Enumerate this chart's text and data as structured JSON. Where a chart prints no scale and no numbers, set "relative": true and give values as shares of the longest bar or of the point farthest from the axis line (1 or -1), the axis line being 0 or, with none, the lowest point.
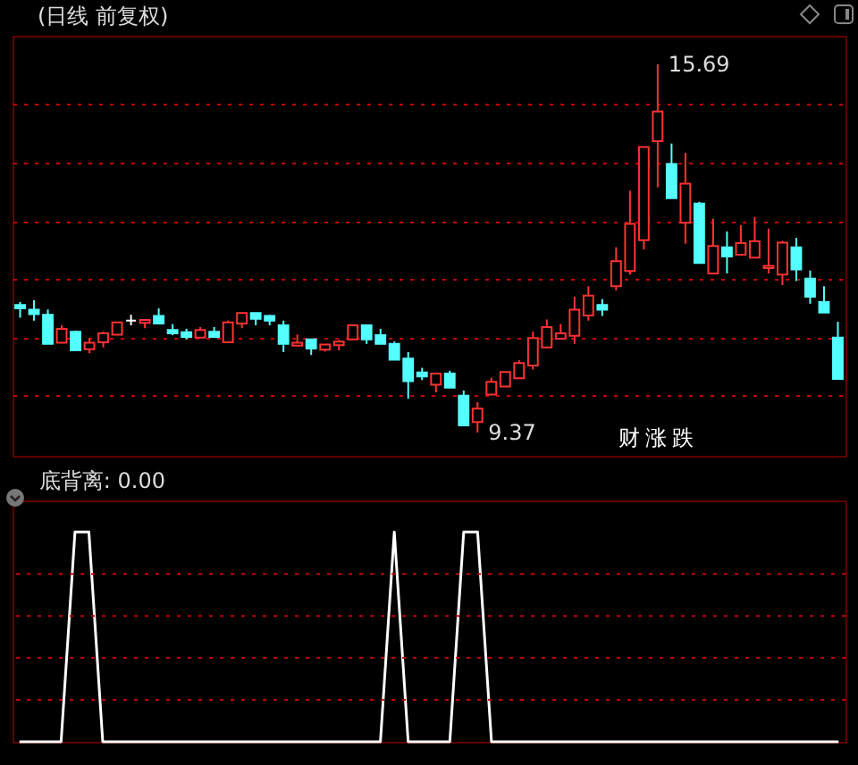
{
  "chart_data": [
    {
      "type": "candlestick",
      "title": "(日线 前复权)",
      "categories": [
        null,
        null,
        null,
        null,
        null,
        null,
        null,
        null,
        null,
        null,
        null,
        null,
        null,
        null,
        null,
        null,
        null,
        null,
        null,
        null,
        null,
        null,
        null,
        null,
        null,
        null,
        null,
        null,
        null,
        null,
        null,
        null,
        null,
        null,
        null,
        null,
        null,
        null,
        null,
        null,
        null,
        null,
        null,
        null,
        null,
        null,
        null,
        null,
        null,
        null,
        null,
        null,
        null,
        null,
        null,
        null,
        null,
        null,
        null,
        null
      ],
      "ohlc": [
        [
          11.56,
          11.61,
          11.34,
          11.5
        ],
        [
          11.48,
          11.64,
          11.29,
          11.4
        ],
        [
          11.39,
          11.48,
          10.89,
          10.89
        ],
        [
          10.91,
          11.21,
          10.91,
          11.15
        ],
        [
          11.1,
          11.12,
          10.78,
          10.78
        ],
        [
          10.8,
          10.99,
          10.73,
          10.91
        ],
        [
          10.92,
          11.1,
          10.83,
          11.07
        ],
        [
          11.05,
          11.26,
          11.05,
          11.26
        ],
        [
          11.29,
          11.39,
          11.21,
          11.29
        ],
        [
          11.25,
          11.31,
          11.16,
          11.3
        ],
        [
          11.37,
          11.5,
          11.24,
          11.24
        ],
        [
          11.13,
          11.23,
          11.04,
          11.07
        ],
        [
          11.09,
          11.15,
          10.97,
          11.01
        ],
        [
          11.0,
          11.18,
          11.0,
          11.13
        ],
        [
          11.1,
          11.18,
          11.0,
          11.01
        ],
        [
          10.92,
          11.29,
          10.92,
          11.26
        ],
        [
          11.24,
          11.42,
          11.16,
          11.42
        ],
        [
          11.42,
          11.42,
          11.21,
          11.32
        ],
        [
          11.37,
          11.39,
          11.21,
          11.29
        ],
        [
          11.21,
          11.29,
          10.75,
          10.89
        ],
        [
          10.86,
          11.05,
          10.86,
          10.91
        ],
        [
          10.97,
          10.97,
          10.7,
          10.81
        ],
        [
          10.79,
          10.88,
          10.76,
          10.88
        ],
        [
          10.87,
          10.96,
          10.78,
          10.93
        ],
        [
          10.97,
          11.21,
          10.97,
          11.21
        ],
        [
          11.21,
          11.21,
          10.89,
          10.97
        ],
        [
          11.04,
          11.15,
          10.89,
          10.89
        ],
        [
          10.89,
          10.93,
          10.62,
          10.62
        ],
        [
          10.64,
          10.75,
          9.95,
          10.25
        ],
        [
          10.4,
          10.48,
          10.27,
          10.33
        ],
        [
          10.19,
          10.38,
          10.06,
          10.38
        ],
        [
          10.38,
          10.43,
          10.14,
          10.14
        ],
        [
          10.0,
          10.09,
          9.49,
          9.49
        ],
        [
          9.55,
          9.89,
          9.37,
          9.78
        ],
        [
          10.02,
          10.31,
          10.02,
          10.24
        ],
        [
          10.16,
          10.41,
          10.16,
          10.41
        ],
        [
          10.3,
          10.61,
          10.3,
          10.56
        ],
        [
          10.52,
          11.1,
          10.45,
          10.99
        ],
        [
          10.83,
          11.31,
          10.83,
          11.18
        ],
        [
          10.98,
          11.23,
          10.97,
          11.07
        ],
        [
          11.03,
          11.7,
          10.89,
          11.48
        ],
        [
          11.38,
          11.88,
          11.29,
          11.72
        ],
        [
          11.56,
          11.66,
          11.37,
          11.48
        ],
        [
          11.88,
          12.55,
          11.81,
          12.31
        ],
        [
          12.14,
          13.52,
          12.08,
          12.95
        ],
        [
          12.67,
          14.27,
          12.51,
          14.27
        ],
        [
          14.37,
          15.69,
          13.58,
          14.88
        ],
        [
          13.98,
          14.33,
          13.39,
          13.39
        ],
        [
          12.97,
          14.17,
          12.61,
          13.64
        ],
        [
          13.3,
          13.33,
          12.28,
          12.28
        ],
        [
          12.1,
          13.04,
          12.09,
          12.57
        ],
        [
          12.55,
          12.82,
          12.1,
          12.39
        ],
        [
          12.42,
          12.93,
          12.42,
          12.62
        ],
        [
          12.37,
          13.07,
          12.37,
          12.65
        ],
        [
          12.19,
          12.87,
          12.1,
          12.23
        ],
        [
          12.08,
          12.66,
          11.9,
          12.63
        ],
        [
          12.55,
          12.71,
          11.97,
          12.17
        ],
        [
          12.01,
          12.15,
          11.58,
          11.7
        ],
        [
          11.61,
          11.88,
          11.43,
          11.43
        ],
        [
          11.0,
          11.27,
          10.29,
          10.29
        ]
      ],
      "colors": [
        "#54ffff",
        "#54ffff",
        "#54ffff",
        "#ff3232",
        "#54ffff",
        "#ff3232",
        "#ff3232",
        "#ff3232",
        "#ffffff",
        "#ff3232",
        "#54ffff",
        "#54ffff",
        "#54ffff",
        "#ff3232",
        "#54ffff",
        "#ff3232",
        "#ff3232",
        "#54ffff",
        "#54ffff",
        "#54ffff",
        "#ff3232",
        "#54ffff",
        "#ff3232",
        "#ff3232",
        "#ff3232",
        "#54ffff",
        "#54ffff",
        "#54ffff",
        "#54ffff",
        "#54ffff",
        "#ff3232",
        "#54ffff",
        "#54ffff",
        "#ff3232",
        "#ff3232",
        "#ff3232",
        "#ff3232",
        "#ff3232",
        "#ff3232",
        "#ff3232",
        "#ff3232",
        "#ff3232",
        "#54ffff",
        "#ff3232",
        "#ff3232",
        "#ff3232",
        "#ff3232",
        "#54ffff",
        "#ff3232",
        "#54ffff",
        "#ff3232",
        "#54ffff",
        "#ff3232",
        "#ff3232",
        "#ff3232",
        "#ff3232",
        "#54ffff",
        "#54ffff",
        "#54ffff",
        "#54ffff"
      ],
      "ylim": [
        8.97,
        16.18
      ],
      "yticks": [
        {
          "value": 10,
          "label": null
        },
        {
          "value": 11,
          "label": null
        },
        {
          "value": 12,
          "label": null
        },
        {
          "value": 13,
          "label": null
        },
        {
          "value": 14,
          "label": null
        },
        {
          "value": 15,
          "label": null
        }
      ],
      "grid": true,
      "annotations": [
        "15.69",
        "9.37",
        "财",
        "涨",
        "跌"
      ]
    },
    {
      "type": "line",
      "title": "底背离: 0.00",
      "relative": true,
      "color": "#ffffff",
      "ref_lines": [
        {
          "axis": "y",
          "value": 0.2,
          "color": "#c80000",
          "line_style": "dotted"
        },
        {
          "axis": "y",
          "value": 0.4,
          "color": "#c80000",
          "line_style": "dotted"
        },
        {
          "axis": "y",
          "value": 0.6,
          "color": "#c80000",
          "line_style": "dotted"
        },
        {
          "axis": "y",
          "value": 0.8,
          "color": "#c80000",
          "line_style": "dotted"
        }
      ],
      "categories": [
        null,
        null,
        null,
        null,
        null,
        null,
        null,
        null,
        null,
        null,
        null,
        null,
        null,
        null,
        null,
        null,
        null,
        null,
        null,
        null,
        null,
        null,
        null,
        null,
        null,
        null,
        null,
        null,
        null,
        null,
        null,
        null,
        null,
        null,
        null,
        null,
        null,
        null,
        null,
        null,
        null,
        null,
        null,
        null,
        null,
        null,
        null,
        null,
        null,
        null,
        null,
        null,
        null,
        null,
        null,
        null,
        null,
        null,
        null,
        null
      ],
      "values": [
        0,
        0,
        0,
        0,
        1,
        1,
        0,
        0,
        0,
        0,
        0,
        0,
        0,
        0,
        0,
        0,
        0,
        0,
        0,
        0,
        0,
        0,
        0,
        0,
        0,
        0,
        0,
        1,
        0,
        0,
        0,
        0,
        1,
        1,
        0,
        0,
        0,
        0,
        0,
        0,
        0,
        0,
        0,
        0,
        0,
        0,
        0,
        0,
        0,
        0,
        0,
        0,
        0,
        0,
        0,
        0,
        0,
        0,
        0,
        0
      ]
    }
  ]
}
